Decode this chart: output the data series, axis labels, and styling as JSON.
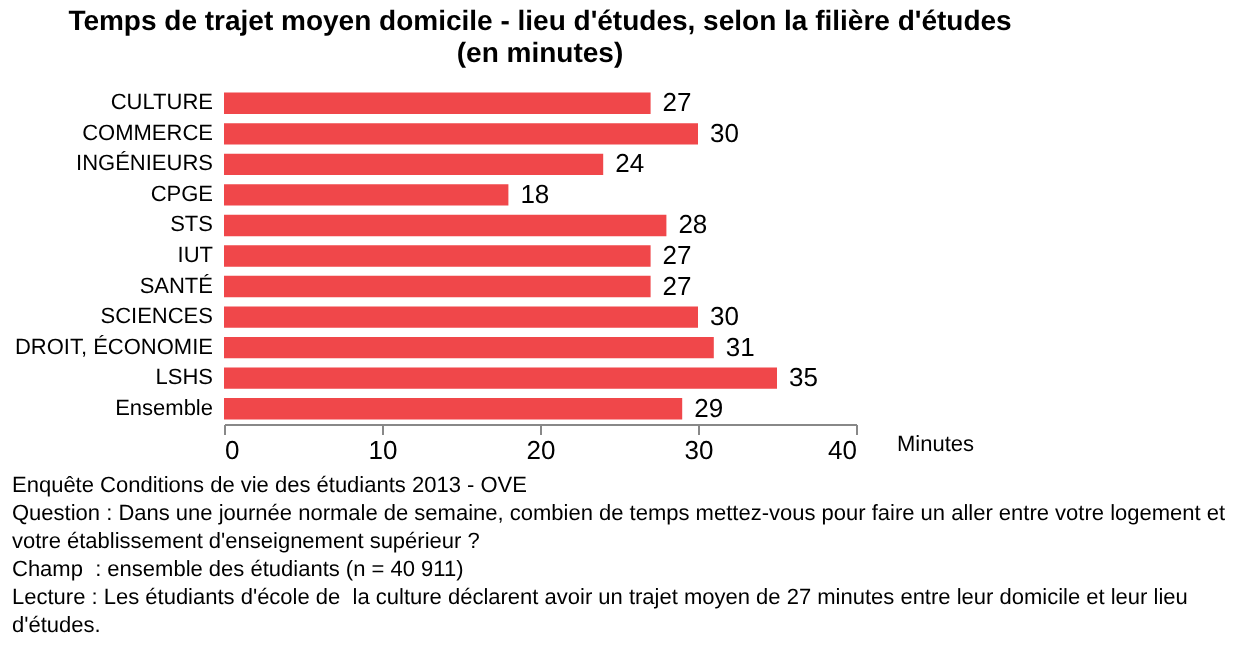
{
  "chart_data": {
    "type": "bar",
    "orientation": "horizontal",
    "title": [
      "Temps de trajet moyen domicile - lieu d'études, selon la filière d'études",
      "(en minutes)"
    ],
    "categories": [
      "CULTURE",
      "COMMERCE",
      "INGÉNIEURS",
      "CPGE",
      "STS",
      "IUT",
      "SANTÉ",
      "SCIENCES",
      "DROIT, ÉCONOMIE",
      "LSHS",
      "Ensemble"
    ],
    "values": [
      27,
      30,
      24,
      18,
      28,
      27,
      27,
      30,
      31,
      35,
      29
    ],
    "color": "#f0474a",
    "xlim": [
      0,
      40
    ],
    "xticks": [
      0,
      10,
      20,
      30,
      40
    ],
    "xlabel": "Minutes",
    "data_labels": true,
    "grid": false,
    "annotations": [
      "Enquête Conditions de vie des étudiants 2013 - OVE",
      "Question : Dans une journée normale de semaine, combien de temps mettez-vous pour faire un aller entre votre logement et votre établissement d'enseignement supérieur ?",
      "Champ  : ensemble des étudiants (n = 40 911)",
      "Lecture : Les étudiants d'école de  la culture déclarent avoir un trajet moyen de 27 minutes entre leur domicile et leur lieu d'études."
    ]
  }
}
